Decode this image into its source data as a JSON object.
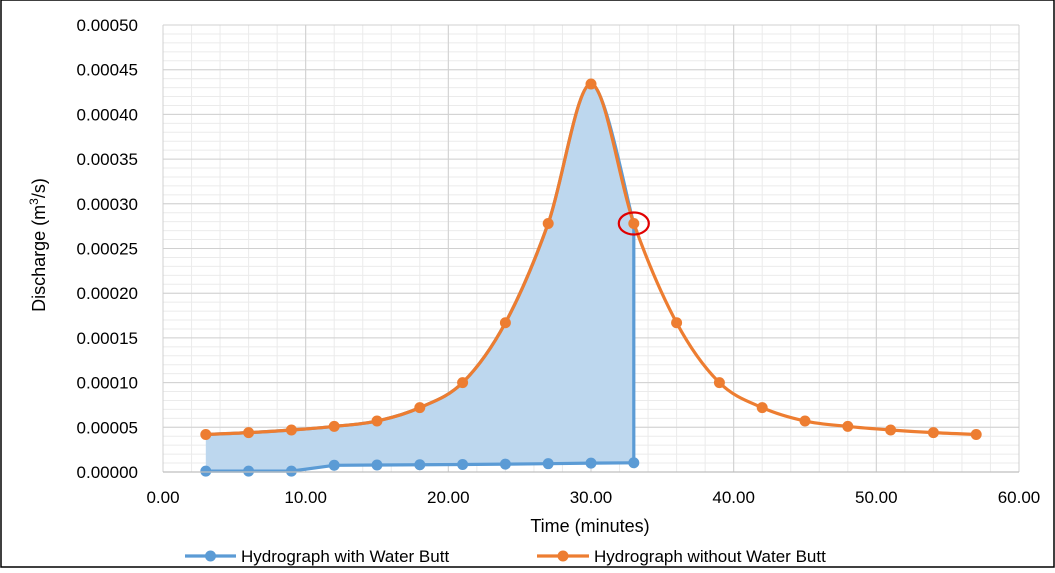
{
  "chart_data": {
    "type": "line",
    "xlabel": "Time (minutes)",
    "ylabel_main": "Discharge (m",
    "ylabel_sup": "3",
    "ylabel_tail": "/s)",
    "xlim": [
      0,
      60
    ],
    "ylim": [
      0,
      0.0005
    ],
    "x_ticks": [
      0,
      10,
      20,
      30,
      40,
      50,
      60
    ],
    "x_tick_labels": [
      "0.00",
      "10.00",
      "20.00",
      "30.00",
      "40.00",
      "50.00",
      "60.00"
    ],
    "y_ticks": [
      0,
      5e-05,
      0.0001,
      0.00015,
      0.0002,
      0.00025,
      0.0003,
      0.00035,
      0.0004,
      0.00045,
      0.0005
    ],
    "y_tick_labels": [
      "0.00000",
      "0.00005",
      "0.00010",
      "0.00015",
      "0.00020",
      "0.00025",
      "0.00030",
      "0.00035",
      "0.00040",
      "0.00045",
      "0.00050"
    ],
    "grid": true,
    "minor_grid": true,
    "legend_position": "bottom",
    "series": [
      {
        "name": "Hydrograph with Water Butt",
        "color": "#5B9BD5",
        "fill": "#BDD7EE",
        "x": [
          3,
          6,
          9,
          12,
          15,
          18,
          21,
          24,
          27,
          30,
          33
        ],
        "y": [
          1e-06,
          1e-06,
          1e-06,
          7.5e-06,
          7.8e-06,
          8.1e-06,
          8.4e-06,
          8.8e-06,
          9.3e-06,
          9.9e-06,
          1.03e-05
        ]
      },
      {
        "name": "Hydrograph without Water Butt",
        "color": "#ED7D31",
        "x": [
          3,
          6,
          9,
          12,
          15,
          18,
          21,
          24,
          27,
          30,
          33,
          36,
          39,
          42,
          45,
          48,
          51,
          54,
          57
        ],
        "y": [
          4.2e-05,
          4.4e-05,
          4.7e-05,
          5.1e-05,
          5.7e-05,
          7.2e-05,
          0.0001,
          0.000167,
          0.000278,
          0.000434,
          0.000278,
          0.000167,
          0.0001,
          7.2e-05,
          5.7e-05,
          5.1e-05,
          4.7e-05,
          4.4e-05,
          4.2e-05
        ]
      }
    ],
    "annotations": [
      {
        "type": "circle",
        "x": 33,
        "y": 0.000278,
        "color": "#E00000"
      }
    ]
  }
}
